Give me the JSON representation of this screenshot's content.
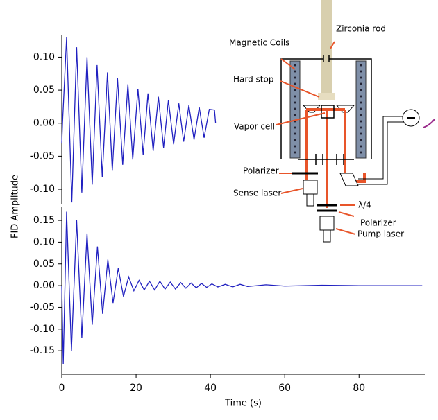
{
  "chart_data": [
    {
      "type": "line",
      "color": "#2020c0",
      "xlim": [
        0,
        97.7
      ],
      "ylim": [
        -0.122,
        0.133
      ],
      "yticks": [
        {
          "value": -0.1,
          "label": "-0.10"
        },
        {
          "value": -0.05,
          "label": "-0.05"
        },
        {
          "value": 0,
          "label": "0.00"
        },
        {
          "value": 0.05,
          "label": "0.05"
        },
        {
          "value": 0.1,
          "label": "0.10"
        }
      ],
      "x": [
        0,
        0.2,
        1.3,
        2.7,
        4.0,
        5.4,
        6.8,
        8.2,
        9.5,
        10.9,
        12.3,
        13.6,
        15.0,
        16.4,
        17.8,
        19.1,
        20.5,
        21.9,
        23.2,
        24.6,
        26.0,
        27.4,
        28.7,
        30.1,
        31.5,
        32.8,
        34.2,
        35.6,
        37.0,
        38.3,
        39.7,
        41.1,
        41.4
      ],
      "values": [
        -0.03,
        0.0,
        0.13,
        -0.12,
        0.115,
        -0.105,
        0.1,
        -0.093,
        0.088,
        -0.082,
        0.077,
        -0.072,
        0.068,
        -0.063,
        0.059,
        -0.055,
        0.052,
        -0.048,
        0.045,
        -0.042,
        0.04,
        -0.037,
        0.035,
        -0.032,
        0.03,
        -0.028,
        0.027,
        -0.025,
        0.024,
        -0.022,
        0.021,
        0.02,
        0.0
      ]
    },
    {
      "type": "line",
      "color": "#2020c0",
      "xlabel": "Time (s)",
      "ylabel": "FID Amplitude",
      "xlim": [
        0,
        97.7
      ],
      "ylim": [
        -0.204,
        0.182
      ],
      "xticks": [
        0,
        20,
        40,
        60,
        80
      ],
      "yticks": [
        {
          "value": -0.15,
          "label": "-0.15"
        },
        {
          "value": -0.1,
          "label": "-0.10"
        },
        {
          "value": -0.05,
          "label": "-0.05"
        },
        {
          "value": 0,
          "label": "0.00"
        },
        {
          "value": 0.05,
          "label": "0.05"
        },
        {
          "value": 0.1,
          "label": "0.10"
        },
        {
          "value": 0.15,
          "label": "0.15"
        }
      ],
      "x": [
        0,
        0.4,
        1.3,
        2.6,
        4.0,
        5.4,
        6.8,
        8.2,
        9.6,
        11.0,
        12.4,
        13.8,
        15.2,
        16.6,
        18.0,
        19.4,
        20.8,
        22.2,
        23.6,
        25.0,
        26.4,
        27.8,
        29.2,
        30.6,
        32.0,
        33.4,
        34.8,
        36.2,
        37.6,
        39.0,
        40.4,
        42,
        44,
        46,
        48,
        50,
        55,
        60,
        70,
        80,
        97
      ],
      "values": [
        0.0,
        -0.18,
        0.17,
        -0.15,
        0.15,
        -0.12,
        0.12,
        -0.09,
        0.09,
        -0.065,
        0.06,
        -0.04,
        0.04,
        -0.025,
        0.02,
        -0.012,
        0.012,
        -0.01,
        0.01,
        -0.01,
        0.01,
        -0.008,
        0.008,
        -0.008,
        0.007,
        -0.006,
        0.006,
        -0.005,
        0.005,
        -0.004,
        0.004,
        -0.003,
        0.003,
        -0.003,
        0.003,
        -0.002,
        0.002,
        -0.001,
        0.001,
        0,
        0
      ]
    }
  ],
  "diagram": {
    "labels": {
      "rod": "Zirconia rod",
      "coils": "Magnetic Coils",
      "stop": "Hard stop",
      "cell": "Vapor cell",
      "polarizer1": "Polarizer",
      "sense": "Sense laser",
      "quarter": "λ/4",
      "polarizer2": "Polarizer",
      "pump": "Pump laser"
    }
  }
}
